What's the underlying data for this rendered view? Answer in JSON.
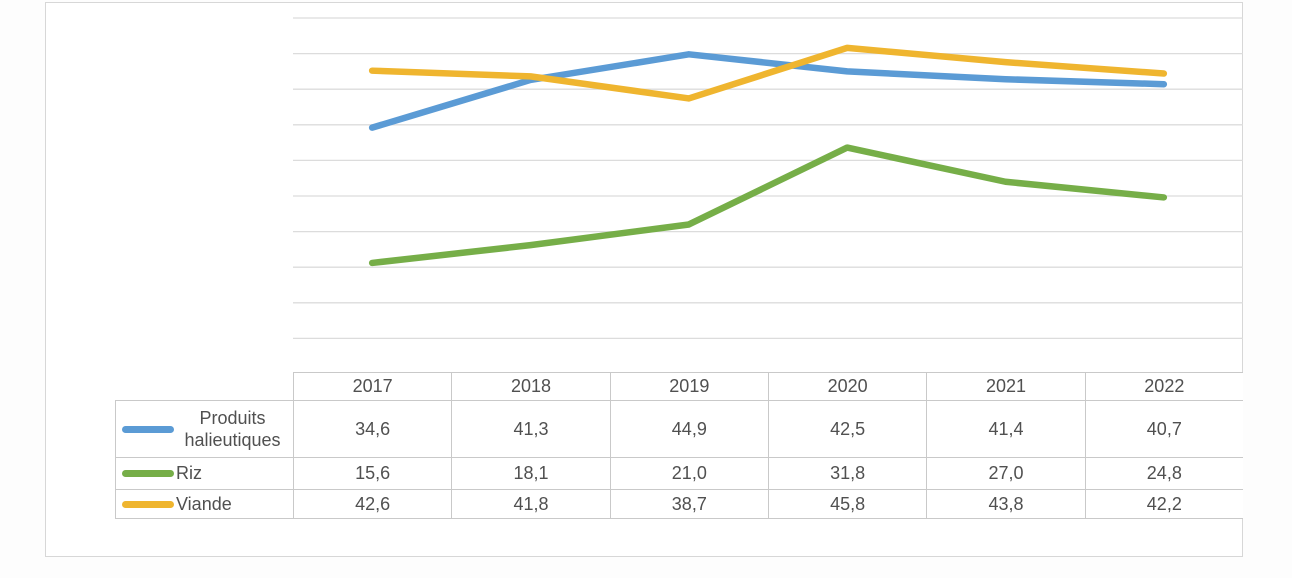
{
  "chart_data": {
    "type": "line",
    "title": "",
    "xlabel": "",
    "ylabel": "",
    "categories": [
      "2017",
      "2018",
      "2019",
      "2020",
      "2021",
      "2022"
    ],
    "series": [
      {
        "name": "Produits halieutiques",
        "color": "#5B9BD5",
        "values": [
          34.6,
          41.3,
          44.9,
          42.5,
          41.4,
          40.7
        ]
      },
      {
        "name": "Riz",
        "color": "#76AE48",
        "values": [
          15.6,
          18.1,
          21.0,
          31.8,
          27.0,
          24.8
        ]
      },
      {
        "name": "Viande",
        "color": "#EFB52F",
        "values": [
          42.6,
          41.8,
          38.7,
          45.8,
          43.8,
          42.2
        ]
      }
    ],
    "ylim": [
      0,
      52
    ],
    "gridline_values": [
      5,
      10,
      15,
      20,
      25,
      30,
      35,
      40,
      45,
      50
    ],
    "grid": true,
    "legend_position": "data-table-left",
    "value_format": "french-comma-one-decimal"
  },
  "data_table": {
    "corner_label": "",
    "year_headers": [
      "2017",
      "2018",
      "2019",
      "2020",
      "2021",
      "2022"
    ],
    "rows": [
      {
        "label": "Produits halieutiques",
        "swatch_color": "#5B9BD5",
        "display_values": [
          "34,6",
          "41,3",
          "44,9",
          "42,5",
          "41,4",
          "40,7"
        ]
      },
      {
        "label": "Riz",
        "swatch_color": "#76AE48",
        "display_values": [
          "15,6",
          "18,1",
          "21,0",
          "31,8",
          "27,0",
          "24,8"
        ]
      },
      {
        "label": "Viande",
        "swatch_color": "#EFB52F",
        "display_values": [
          "42,6",
          "41,8",
          "38,7",
          "45,8",
          "43,8",
          "42,2"
        ]
      }
    ]
  },
  "style_colors": {
    "gridline": "#DCDCDC",
    "table_border": "#C9C9C9",
    "frame_border": "#D7D7D7",
    "text": "#505050",
    "background": "#FFFFFF"
  }
}
